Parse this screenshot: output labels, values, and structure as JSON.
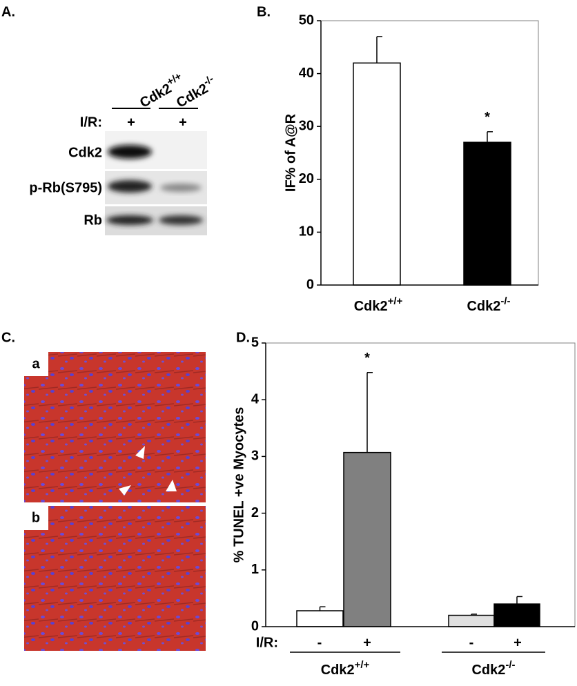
{
  "panels": {
    "A": "A.",
    "B": "B.",
    "C": "C.",
    "D": "D."
  },
  "blot": {
    "columns": [
      "Cdk2+/+",
      "Cdk2-/-"
    ],
    "treatment_label": "I/R:",
    "treatment": [
      "+",
      "+"
    ],
    "rows": [
      "Cdk2",
      "p-Rb(S795)",
      "Rb"
    ]
  },
  "micrographs": {
    "labels": [
      "a",
      "b"
    ]
  },
  "chart_data": [
    {
      "type": "bar",
      "y_label": "IF% of A@R",
      "categories": [
        "Cdk2+/+",
        "Cdk2-/-"
      ],
      "values": [
        42,
        27
      ],
      "errors": [
        5,
        2
      ],
      "colors": [
        "#ffffff",
        "#000000"
      ],
      "ylim": [
        0,
        50
      ],
      "yticks": [
        0,
        10,
        20,
        30,
        40,
        50
      ],
      "annotations": [
        {
          "text": "*",
          "index": 1
        }
      ]
    },
    {
      "type": "bar",
      "y_label": "% TUNEL +ve Myocytes",
      "treatment_label": "I/R:",
      "categories": [
        "-",
        "+",
        "-",
        "+"
      ],
      "groups": [
        "Cdk2+/+",
        "Cdk2-/-"
      ],
      "values": [
        0.28,
        3.07,
        0.2,
        0.4
      ],
      "errors": [
        0.07,
        1.41,
        0.02,
        0.13
      ],
      "colors": [
        "#ffffff",
        "#808080",
        "#e0e0e0",
        "#000000"
      ],
      "ylim": [
        0,
        5
      ],
      "yticks": [
        0,
        1,
        2,
        3,
        4,
        5
      ],
      "annotations": [
        {
          "text": "*",
          "index": 1
        }
      ]
    }
  ]
}
